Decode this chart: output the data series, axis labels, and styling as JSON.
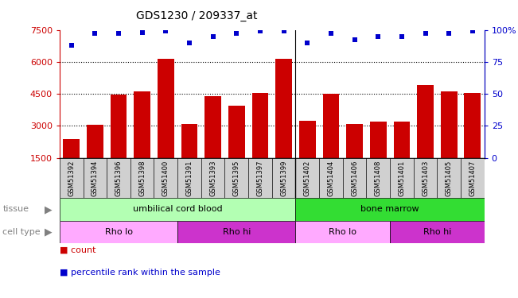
{
  "title": "GDS1230 / 209337_at",
  "samples": [
    "GSM51392",
    "GSM51394",
    "GSM51396",
    "GSM51398",
    "GSM51400",
    "GSM51391",
    "GSM51393",
    "GSM51395",
    "GSM51397",
    "GSM51399",
    "GSM51402",
    "GSM51404",
    "GSM51406",
    "GSM51408",
    "GSM51401",
    "GSM51403",
    "GSM51405",
    "GSM51407"
  ],
  "bar_values": [
    2400,
    3050,
    4450,
    4600,
    6150,
    3100,
    4400,
    3950,
    4550,
    6150,
    3250,
    4500,
    3100,
    3200,
    3200,
    4900,
    4600,
    4550
  ],
  "percentile_values": [
    88,
    97,
    97,
    98,
    99,
    90,
    95,
    97,
    99,
    99,
    90,
    97,
    92,
    95,
    95,
    97,
    97,
    99
  ],
  "bar_color": "#cc0000",
  "dot_color": "#0000cc",
  "ylim_left": [
    1500,
    7500
  ],
  "ylim_right": [
    0,
    100
  ],
  "yticks_left": [
    1500,
    3000,
    4500,
    6000,
    7500
  ],
  "yticks_right": [
    0,
    25,
    50,
    75,
    100
  ],
  "grid_values": [
    3000,
    4500,
    6000
  ],
  "tissue_labels": [
    {
      "text": "umbilical cord blood",
      "start": 0,
      "end": 9,
      "color": "#b3ffb3"
    },
    {
      "text": "bone marrow",
      "start": 10,
      "end": 17,
      "color": "#33dd33"
    }
  ],
  "cell_type_labels": [
    {
      "text": "Rho lo",
      "start": 0,
      "end": 4,
      "color": "#ffaaff"
    },
    {
      "text": "Rho hi",
      "start": 5,
      "end": 9,
      "color": "#cc33cc"
    },
    {
      "text": "Rho lo",
      "start": 10,
      "end": 13,
      "color": "#ffaaff"
    },
    {
      "text": "Rho hi",
      "start": 14,
      "end": 17,
      "color": "#cc33cc"
    }
  ],
  "legend_items": [
    {
      "label": "count",
      "color": "#cc0000"
    },
    {
      "label": "percentile rank within the sample",
      "color": "#0000cc"
    }
  ],
  "tissue_arrow_label": "tissue",
  "cell_type_arrow_label": "cell type",
  "xtick_bg": "#d0d0d0",
  "sep_index": 9.5,
  "bar_width": 0.7
}
